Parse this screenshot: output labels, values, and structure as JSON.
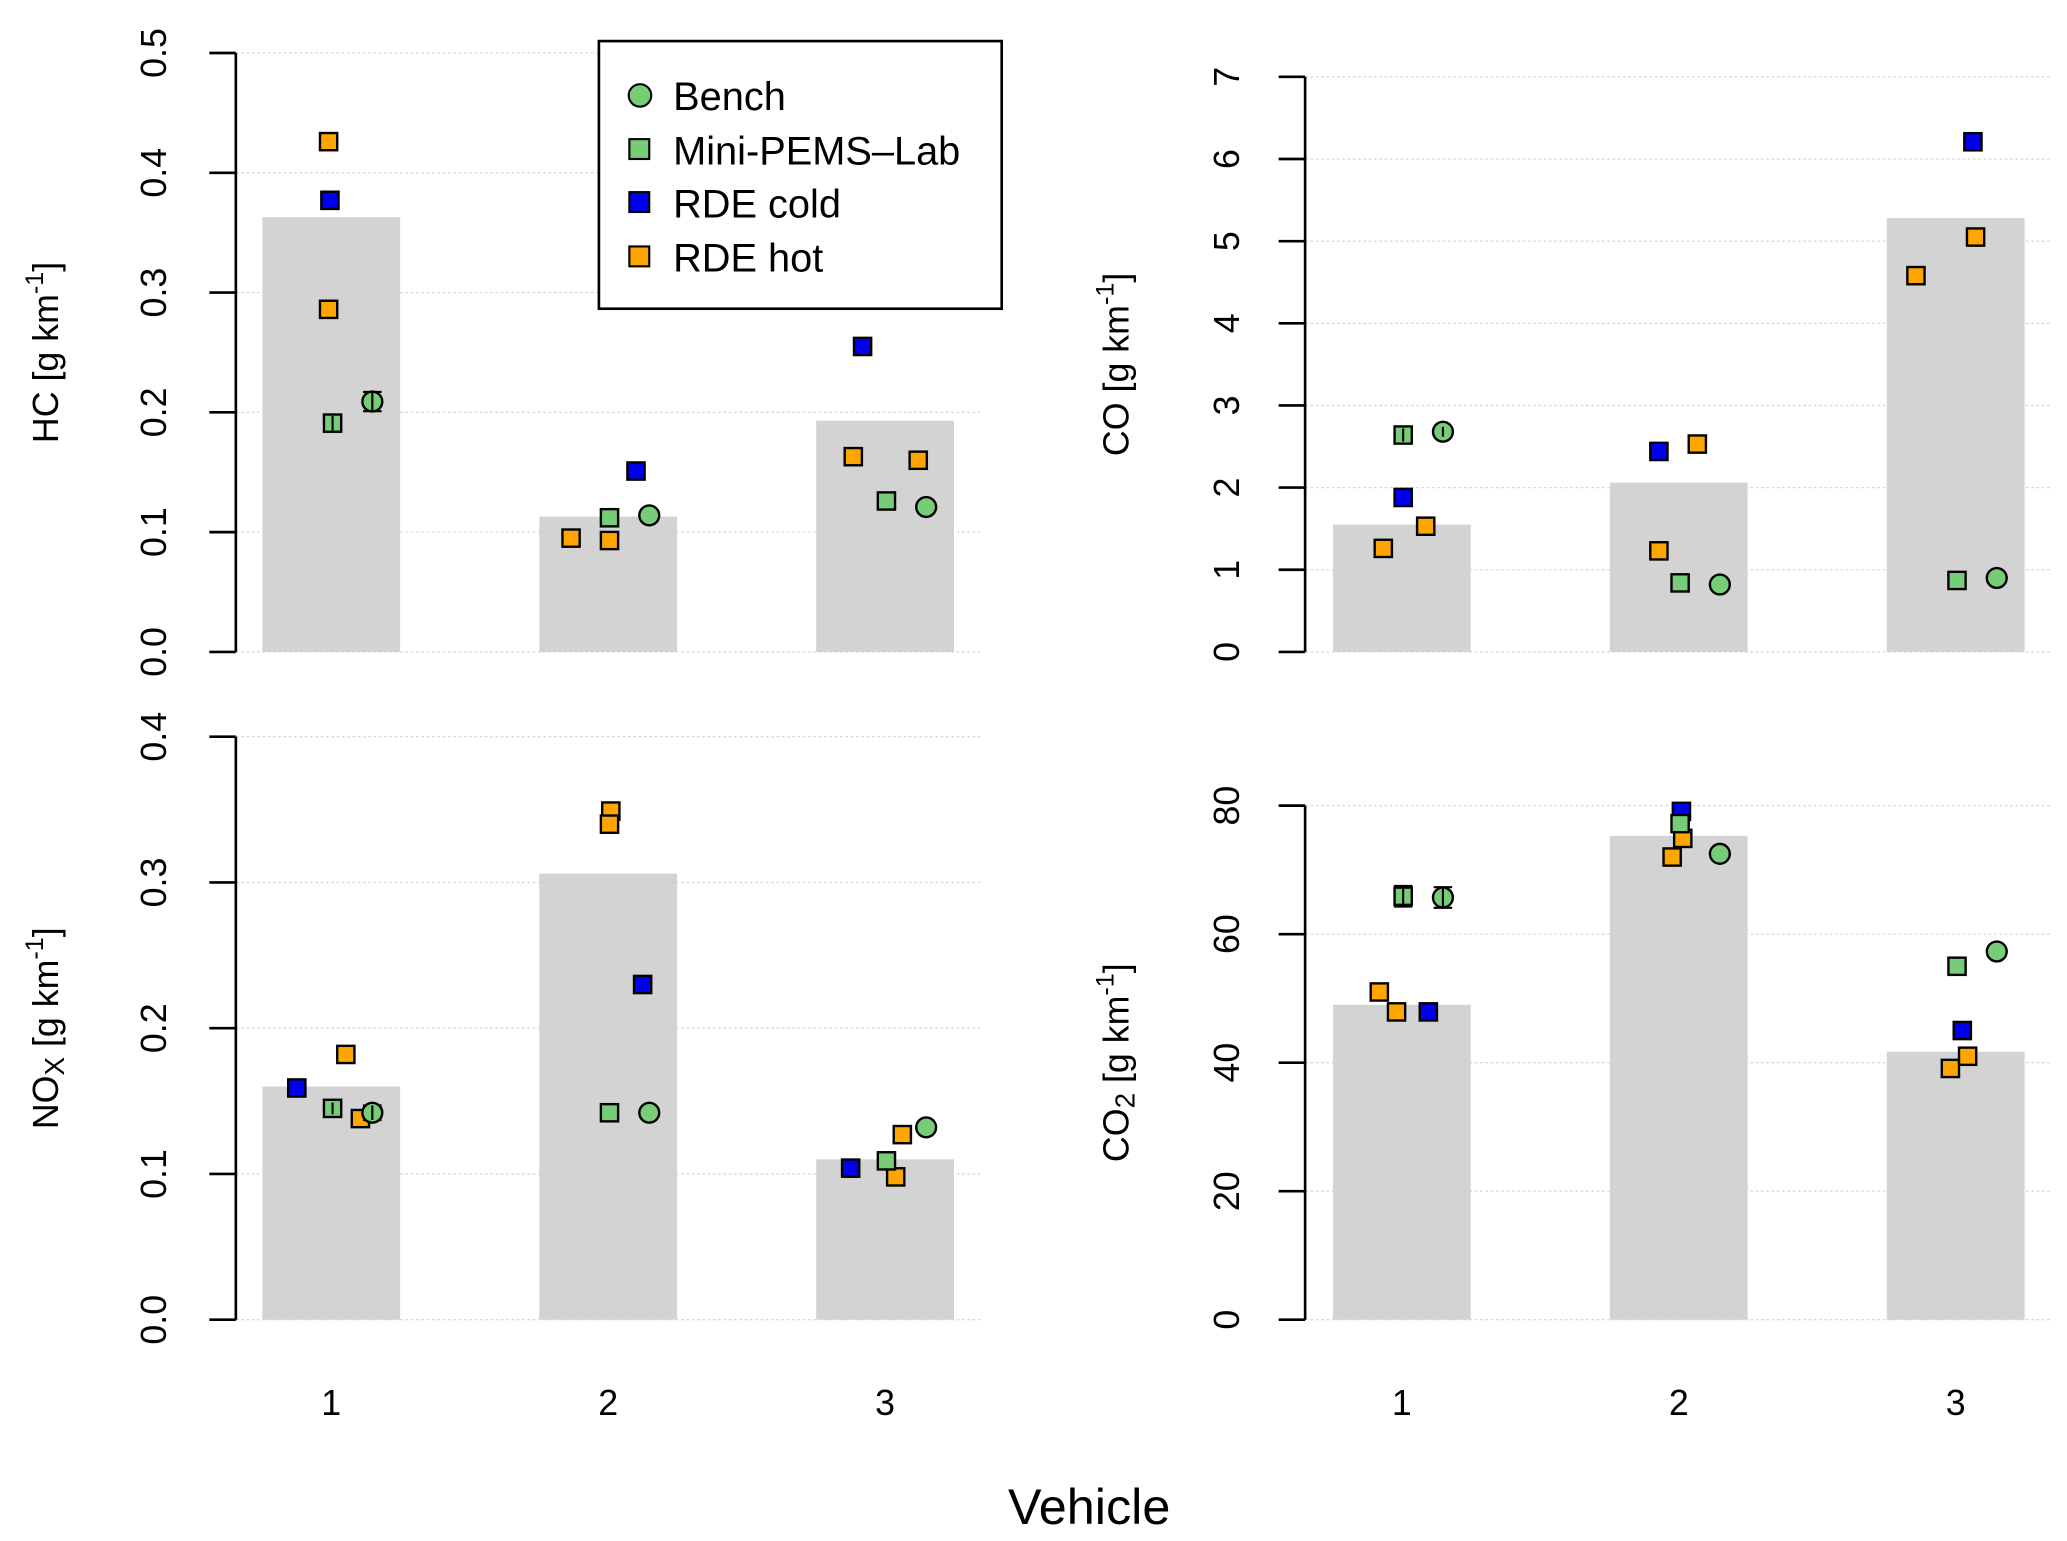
{
  "chart_data": {
    "type": "bar",
    "layout": "2x2 panels",
    "shared_xlabel": "Vehicle",
    "categories": [
      "1",
      "2",
      "3"
    ],
    "legend": {
      "placement": "top-left panel, upper-right",
      "entries": [
        {
          "name": "Bench",
          "shape": "circle",
          "color": "#77cc77"
        },
        {
          "name": "Mini-PEMS–Lab",
          "shape": "square",
          "color": "#77cc77"
        },
        {
          "name": "RDE cold",
          "shape": "square",
          "color": "#0000ee"
        },
        {
          "name": "RDE hot",
          "shape": "square",
          "color": "#ffa500"
        }
      ]
    },
    "colors": {
      "bar": "#d3d3d3",
      "bench": "#77cc77",
      "minipems": "#77cc77",
      "rde_cold": "#0000ee",
      "rde_hot": "#ffa500"
    },
    "panels": [
      {
        "id": "hc",
        "position": "top-left",
        "ylabel_main": "HC",
        "ylabel_sub": "",
        "ylabel_unit": "[g km",
        "ylabel_exp": "-1",
        "ylabel_close": "]",
        "ylim": [
          0,
          0.5
        ],
        "yticks": [
          "0.0",
          "0.1",
          "0.2",
          "0.3",
          "0.4",
          "0.5"
        ],
        "ytick_values": [
          0,
          0.1,
          0.2,
          0.3,
          0.4,
          0.5
        ],
        "show_xticks": false,
        "bars": [
          0.363,
          0.113,
          0.193
        ],
        "points": {
          "bench": [
            [
              0.209,
              0.008
            ],
            [
              0.114,
              0
            ],
            [
              0.121,
              0
            ]
          ],
          "minipems": [
            [
              0.191,
              0.006
            ],
            [
              0.112,
              0
            ],
            [
              0.126,
              0
            ]
          ],
          "rde_cold": [
            [
              0.377
            ],
            [
              0.151
            ],
            [
              0.255
            ]
          ],
          "rde_hot": [
            [
              0.426,
              0.286
            ],
            [
              0.095,
              0.093
            ],
            [
              0.163,
              0.16
            ]
          ]
        }
      },
      {
        "id": "co",
        "position": "top-right",
        "ylabel_main": "CO",
        "ylabel_sub": "",
        "ylabel_unit": "[g km",
        "ylabel_exp": "-1",
        "ylabel_close": "]",
        "ylim": [
          0,
          7
        ],
        "yticks": [
          "0",
          "1",
          "2",
          "3",
          "4",
          "5",
          "6",
          "7"
        ],
        "ytick_values": [
          0,
          1,
          2,
          3,
          4,
          5,
          6,
          7
        ],
        "show_xticks": false,
        "bars": [
          1.55,
          2.06,
          5.28
        ],
        "points": {
          "bench": [
            [
              2.68,
              0.06
            ],
            [
              0.82,
              0
            ],
            [
              0.9,
              0
            ]
          ],
          "minipems": [
            [
              2.64,
              0.08
            ],
            [
              0.84,
              0
            ],
            [
              0.87,
              0
            ]
          ],
          "rde_cold": [
            [
              1.88
            ],
            [
              2.44
            ],
            [
              6.21
            ]
          ],
          "rde_hot": [
            [
              1.26,
              1.53
            ],
            [
              1.23,
              2.53
            ],
            [
              4.58,
              5.05
            ]
          ]
        }
      },
      {
        "id": "nox",
        "position": "bottom-left",
        "ylabel_main": "NO",
        "ylabel_sub": "X",
        "ylabel_unit": "[g km",
        "ylabel_exp": "-1",
        "ylabel_close": "]",
        "ylim": [
          0,
          0.4
        ],
        "yticks": [
          "0.0",
          "0.1",
          "0.2",
          "0.3",
          "0.4"
        ],
        "ytick_values": [
          0,
          0.1,
          0.2,
          0.3,
          0.4
        ],
        "show_xticks": true,
        "bars": [
          0.16,
          0.306,
          0.11
        ],
        "points": {
          "bench": [
            [
              0.142,
              0.005
            ],
            [
              0.142,
              0
            ],
            [
              0.132,
              0
            ]
          ],
          "minipems": [
            [
              0.145,
              0.004
            ],
            [
              0.142,
              0
            ],
            [
              0.109,
              0
            ]
          ],
          "rde_cold": [
            [
              0.159
            ],
            [
              0.23
            ],
            [
              0.104
            ]
          ],
          "rde_hot": [
            [
              0.182,
              0.138
            ],
            [
              0.349,
              0.34
            ],
            [
              0.127,
              0.098
            ]
          ]
        }
      },
      {
        "id": "co2",
        "position": "bottom-right",
        "ylabel_main": "CO",
        "ylabel_sub": "2",
        "ylabel_unit": "[g km",
        "ylabel_exp": "-1",
        "ylabel_close": "]",
        "ylim": [
          0,
          80
        ],
        "yticks": [
          "0",
          "20",
          "40",
          "60",
          "80"
        ],
        "ytick_values": [
          0,
          20,
          40,
          60,
          80
        ],
        "show_xticks": true,
        "bars": [
          49.0,
          75.3,
          41.7
        ],
        "points": {
          "bench": [
            [
              65.7,
              1.6
            ],
            [
              72.5,
              0
            ],
            [
              57.3,
              0
            ]
          ],
          "minipems": [
            [
              65.9,
              1.6
            ],
            [
              77.2,
              0
            ],
            [
              55.0,
              0
            ]
          ],
          "rde_cold": [
            [
              47.9
            ],
            [
              79.1
            ],
            [
              45.0
            ]
          ],
          "rde_hot": [
            [
              51.0,
              47.9
            ],
            [
              72.0,
              74.9
            ],
            [
              39.1,
              41.0
            ]
          ]
        }
      }
    ]
  }
}
